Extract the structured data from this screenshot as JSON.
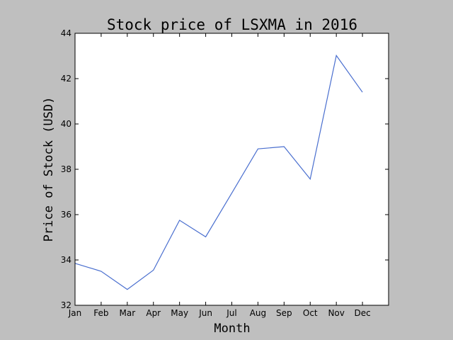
{
  "chart_data": {
    "type": "line",
    "title": "Stock price of LSXMA in 2016",
    "xlabel": "Month",
    "ylabel": "Price of Stock (USD)",
    "categories": [
      "Jan",
      "Feb",
      "Mar",
      "Apr",
      "May",
      "Jun",
      "Jul",
      "Aug",
      "Sep",
      "Oct",
      "Nov",
      "Dec"
    ],
    "values": [
      33.85,
      33.5,
      32.7,
      33.55,
      35.75,
      35.02,
      36.95,
      38.9,
      39.0,
      37.57,
      43.02,
      41.4
    ],
    "ylim": [
      32,
      44
    ],
    "yticks": [
      32,
      34,
      36,
      38,
      40,
      42,
      44
    ],
    "xlim": [
      0,
      12
    ],
    "grid": false,
    "line_color": "#4a6fcf"
  }
}
